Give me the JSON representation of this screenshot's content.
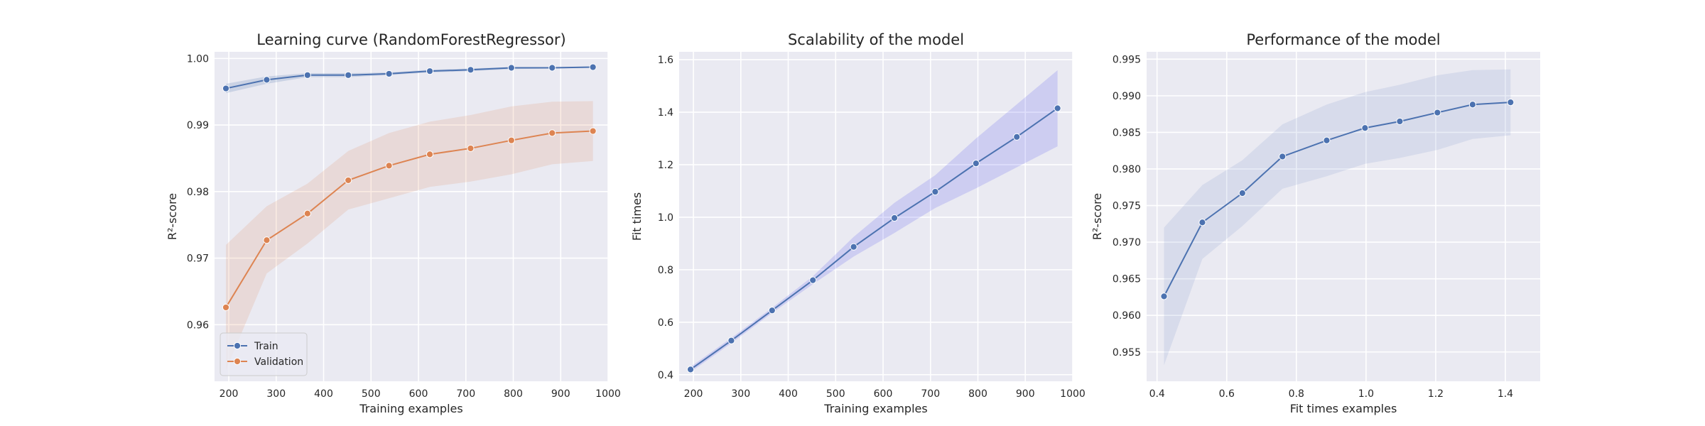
{
  "chart_data": [
    {
      "type": "line",
      "title": "Learning curve (RandomForestRegressor)",
      "xlabel": "Training examples",
      "ylabel": "R²-score",
      "xlim": [
        170,
        1000
      ],
      "ylim": [
        0.9515,
        1.001
      ],
      "xticks": [
        200,
        300,
        400,
        500,
        600,
        700,
        800,
        900,
        1000
      ],
      "yticks": [
        0.96,
        0.97,
        0.98,
        0.99,
        1.0
      ],
      "ytick_labels": [
        "0.96",
        "0.97",
        "0.98",
        "0.99",
        "1.00"
      ],
      "x": [
        194,
        280,
        366,
        452,
        538,
        624,
        710,
        796,
        882,
        968
      ],
      "legend": "lower-left",
      "grid": true,
      "series": [
        {
          "name": "Train",
          "color": "#4c72b0",
          "values": [
            0.9955,
            0.9968,
            0.9975,
            0.9975,
            0.9977,
            0.9981,
            0.9983,
            0.9986,
            0.9986,
            0.9987
          ],
          "upper": [
            0.9962,
            0.9973,
            0.9978,
            0.9978,
            0.9979,
            0.9983,
            0.9985,
            0.9987,
            0.9987,
            0.9988
          ],
          "lower": [
            0.9948,
            0.9962,
            0.9972,
            0.9972,
            0.9975,
            0.9979,
            0.9981,
            0.9984,
            0.9985,
            0.9986
          ]
        },
        {
          "name": "Validation",
          "color": "#dd8452",
          "values": [
            0.9626,
            0.9727,
            0.9767,
            0.9817,
            0.9839,
            0.9856,
            0.9865,
            0.9877,
            0.9888,
            0.9891
          ],
          "upper": [
            0.972,
            0.9778,
            0.9812,
            0.9861,
            0.9888,
            0.9905,
            0.9915,
            0.9928,
            0.9935,
            0.9936
          ],
          "lower": [
            0.9532,
            0.9677,
            0.9722,
            0.9773,
            0.979,
            0.9807,
            0.9815,
            0.9826,
            0.9841,
            0.9846
          ]
        }
      ]
    },
    {
      "type": "line",
      "title": "Scalability of the model",
      "xlabel": "Training examples",
      "ylabel": "Fit times",
      "xlim": [
        170,
        1000
      ],
      "ylim": [
        0.375,
        1.63
      ],
      "xticks": [
        200,
        300,
        400,
        500,
        600,
        700,
        800,
        900,
        1000
      ],
      "yticks": [
        0.4,
        0.6,
        0.8,
        1.0,
        1.2,
        1.4,
        1.6
      ],
      "ytick_labels": [
        "0.4",
        "0.6",
        "0.8",
        "1.0",
        "1.2",
        "1.4",
        "1.6"
      ],
      "x": [
        194,
        280,
        366,
        452,
        538,
        624,
        710,
        796,
        882,
        968
      ],
      "grid": true,
      "series": [
        {
          "color": "#4c72b0",
          "values": [
            0.42,
            0.53,
            0.645,
            0.76,
            0.887,
            0.997,
            1.097,
            1.205,
            1.306,
            1.415
          ],
          "upper": [
            0.43,
            0.54,
            0.655,
            0.775,
            0.925,
            1.055,
            1.16,
            1.3,
            1.43,
            1.56
          ],
          "lower": [
            0.41,
            0.52,
            0.635,
            0.745,
            0.85,
            0.94,
            1.035,
            1.11,
            1.19,
            1.27
          ]
        }
      ]
    },
    {
      "type": "line",
      "title": "Performance of the model",
      "xlabel": "Fit times examples",
      "ylabel": "R²-score",
      "xlim": [
        0.37,
        1.5
      ],
      "ylim": [
        0.951,
        0.996
      ],
      "xticks": [
        0.4,
        0.6,
        0.8,
        1.0,
        1.2,
        1.4
      ],
      "xtick_labels": [
        "0.4",
        "0.6",
        "0.8",
        "1.0",
        "1.2",
        "1.4"
      ],
      "yticks": [
        0.955,
        0.96,
        0.965,
        0.97,
        0.975,
        0.98,
        0.985,
        0.99,
        0.995
      ],
      "ytick_labels": [
        "0.955",
        "0.960",
        "0.965",
        "0.970",
        "0.975",
        "0.980",
        "0.985",
        "0.990",
        "0.995"
      ],
      "x": [
        0.42,
        0.53,
        0.645,
        0.76,
        0.887,
        0.997,
        1.097,
        1.205,
        1.306,
        1.415
      ],
      "grid": true,
      "series": [
        {
          "color": "#4c72b0",
          "values": [
            0.9626,
            0.9727,
            0.9767,
            0.9817,
            0.9839,
            0.9856,
            0.9865,
            0.9877,
            0.9888,
            0.9891
          ],
          "upper": [
            0.972,
            0.9778,
            0.9812,
            0.9861,
            0.9888,
            0.9905,
            0.9915,
            0.9928,
            0.9935,
            0.9936
          ],
          "lower": [
            0.9532,
            0.9677,
            0.9722,
            0.9773,
            0.979,
            0.9807,
            0.9815,
            0.9826,
            0.9841,
            0.9846
          ]
        }
      ]
    }
  ]
}
